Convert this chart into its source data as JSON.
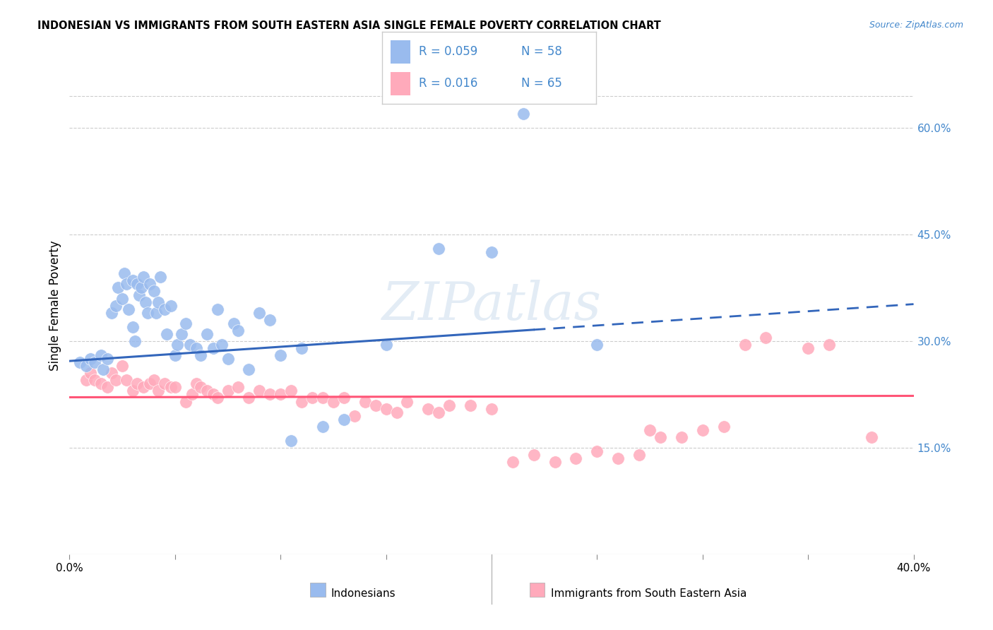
{
  "title": "INDONESIAN VS IMMIGRANTS FROM SOUTH EASTERN ASIA SINGLE FEMALE POVERTY CORRELATION CHART",
  "source": "Source: ZipAtlas.com",
  "ylabel": "Single Female Poverty",
  "right_ytick_vals": [
    0.15,
    0.3,
    0.45,
    0.6
  ],
  "right_ytick_labels": [
    "15.0%",
    "30.0%",
    "45.0%",
    "60.0%"
  ],
  "xlim": [
    0.0,
    0.4
  ],
  "ylim": [
    0.0,
    0.7
  ],
  "watermark": "ZIPatlas",
  "legend_r1": "R = 0.059",
  "legend_n1": "N = 58",
  "legend_r2": "R = 0.016",
  "legend_n2": "N = 65",
  "blue_scatter_color": "#99BBEE",
  "pink_scatter_color": "#FFAABB",
  "blue_line_color": "#3366BB",
  "pink_line_color": "#FF5577",
  "text_blue": "#4488CC",
  "background_color": "#FFFFFF",
  "grid_color": "#CCCCCC",
  "bottom_label1": "Indonesians",
  "bottom_label2": "Immigrants from South Eastern Asia",
  "indo_x": [
    0.005,
    0.008,
    0.01,
    0.012,
    0.015,
    0.016,
    0.018,
    0.02,
    0.022,
    0.023,
    0.025,
    0.026,
    0.027,
    0.028,
    0.03,
    0.03,
    0.031,
    0.032,
    0.033,
    0.034,
    0.035,
    0.036,
    0.037,
    0.038,
    0.04,
    0.041,
    0.042,
    0.043,
    0.045,
    0.046,
    0.048,
    0.05,
    0.051,
    0.053,
    0.055,
    0.057,
    0.06,
    0.062,
    0.065,
    0.068,
    0.07,
    0.072,
    0.075,
    0.078,
    0.08,
    0.085,
    0.09,
    0.095,
    0.1,
    0.105,
    0.11,
    0.12,
    0.13,
    0.15,
    0.175,
    0.2,
    0.215,
    0.25
  ],
  "indo_y": [
    0.27,
    0.265,
    0.275,
    0.27,
    0.28,
    0.26,
    0.275,
    0.34,
    0.35,
    0.375,
    0.36,
    0.395,
    0.38,
    0.345,
    0.385,
    0.32,
    0.3,
    0.38,
    0.365,
    0.375,
    0.39,
    0.355,
    0.34,
    0.38,
    0.37,
    0.34,
    0.355,
    0.39,
    0.345,
    0.31,
    0.35,
    0.28,
    0.295,
    0.31,
    0.325,
    0.295,
    0.29,
    0.28,
    0.31,
    0.29,
    0.345,
    0.295,
    0.275,
    0.325,
    0.315,
    0.26,
    0.34,
    0.33,
    0.28,
    0.16,
    0.29,
    0.18,
    0.19,
    0.295,
    0.43,
    0.425,
    0.62,
    0.295
  ],
  "imm_x": [
    0.008,
    0.01,
    0.012,
    0.015,
    0.018,
    0.02,
    0.022,
    0.025,
    0.027,
    0.03,
    0.032,
    0.035,
    0.038,
    0.04,
    0.042,
    0.045,
    0.048,
    0.05,
    0.055,
    0.058,
    0.06,
    0.062,
    0.065,
    0.068,
    0.07,
    0.075,
    0.08,
    0.085,
    0.09,
    0.095,
    0.1,
    0.105,
    0.11,
    0.115,
    0.12,
    0.125,
    0.13,
    0.135,
    0.14,
    0.145,
    0.15,
    0.155,
    0.16,
    0.17,
    0.175,
    0.18,
    0.19,
    0.2,
    0.21,
    0.22,
    0.23,
    0.24,
    0.25,
    0.26,
    0.27,
    0.275,
    0.28,
    0.29,
    0.3,
    0.31,
    0.32,
    0.33,
    0.35,
    0.36,
    0.38
  ],
  "imm_y": [
    0.245,
    0.255,
    0.245,
    0.24,
    0.235,
    0.255,
    0.245,
    0.265,
    0.245,
    0.23,
    0.24,
    0.235,
    0.24,
    0.245,
    0.23,
    0.24,
    0.235,
    0.235,
    0.215,
    0.225,
    0.24,
    0.235,
    0.23,
    0.225,
    0.22,
    0.23,
    0.235,
    0.22,
    0.23,
    0.225,
    0.225,
    0.23,
    0.215,
    0.22,
    0.22,
    0.215,
    0.22,
    0.195,
    0.215,
    0.21,
    0.205,
    0.2,
    0.215,
    0.205,
    0.2,
    0.21,
    0.21,
    0.205,
    0.13,
    0.14,
    0.13,
    0.135,
    0.145,
    0.135,
    0.14,
    0.175,
    0.165,
    0.165,
    0.175,
    0.18,
    0.295,
    0.305,
    0.29,
    0.295,
    0.165
  ]
}
